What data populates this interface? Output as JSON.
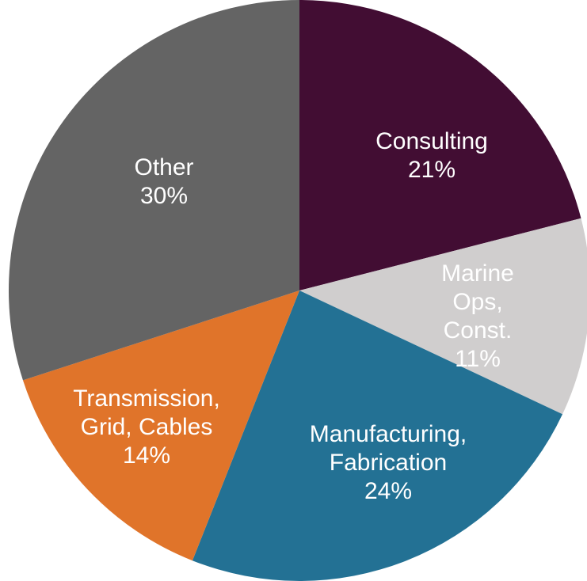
{
  "chart_data": {
    "type": "pie",
    "categories": [
      "Consulting",
      "Marine Ops,\nConst.",
      "Manufacturing,\nFabrication",
      "Transmission,\nGrid, Cables",
      "Other"
    ],
    "values": [
      21,
      11,
      24,
      14,
      30
    ],
    "value_labels": [
      "21%",
      "11%",
      "24%",
      "14%",
      "30%"
    ],
    "colors": [
      "#420d33",
      "#d0cece",
      "#237194",
      "#e0742a",
      "#646464"
    ]
  }
}
